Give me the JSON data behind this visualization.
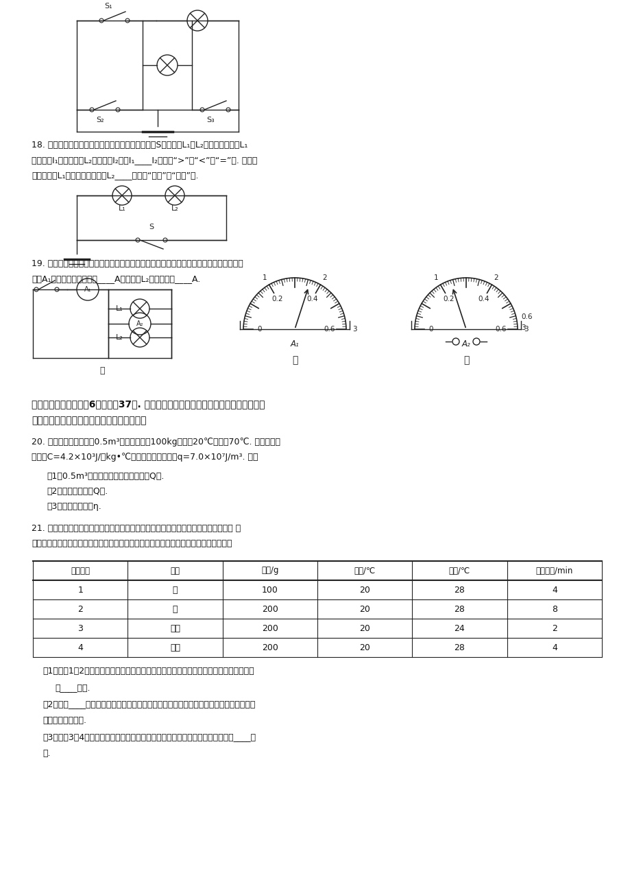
{
  "bg_color": "#ffffff",
  "text_color": "#111111",
  "page_width": 9.2,
  "page_height": 13.02,
  "q18_lines": [
    "18. 如图，把两个灯泡串联后接到电源上，合上开关S后，发现L₁比L₂亮，设通过灯泡L₁",
    "的电流为I₁，通过灯泡L₂的电流为I₂，则I₁____I₂（选填“>”、“<”或“=”）. 若工作",
    "过程中灯泡L₁突然烧坏，则灯泡L₂____（选填“仍亮”或“不亮”）."
  ],
  "q19_lines": [
    "19. 如图甲所示的电路图，开关闭合时，两灯都亮，两个电流表的示数分别如图乙和图丙，",
    "判断A₁表（图乙）的读数是____A；通过灯L₂的电流大是____A."
  ],
  "s4_lines": [
    "四、综合题（本大题八6小题，八37分. 解题中要求有必要的分析和说明，计算题还要有",
    "公式及数据代入过程，结果要有数值和单位）"
  ],
  "q20_lines": [
    "20. 天然气灶烧水，燃烧0.5m³的天然气，使100kg的水从20℃升高到70℃. 已知水的比",
    "热容为C=4.2×10³J/（kg•℃），天然气的热値为q=7.0×10⁷J/m³. 求："
  ],
  "q20_subs": [
    "（1）0.5m³天然气完全燃烧放出的热量Q放.",
    "（2）水吸收的热量Q吸.",
    "（3）燃气灶的效率η."
  ],
  "q21_lines": [
    "21. 几位同学为了研究物质温度升高时吸收热量的多少与哪些因素有关，做了如下实验 在",
    "四个相同的烧杯里分别盛入水和煎油，用同样的电热器给它们加热，得到如下实验数据："
  ],
  "table_headers": [
    "实验次数",
    "液体",
    "质量/g",
    "初温/℃",
    "末温/℃",
    "加热时间/min"
  ],
  "table_data": [
    [
      "1",
      "水",
      "100",
      "20",
      "28",
      "4"
    ],
    [
      "2",
      "水",
      "200",
      "20",
      "28",
      "8"
    ],
    [
      "3",
      "煎油",
      "200",
      "20",
      "24",
      "2"
    ],
    [
      "4",
      "煎油",
      "200",
      "20",
      "28",
      "4"
    ]
  ],
  "q21_subs": [
    "（1）比较1、2两次实验数据可以得出：同种物质升高相同的温度，吸收热量的多少与物质",
    "的____有关.",
    "（2）比较____两次实验数据可以得出：质量相同的物质升高相同的温度，吸收热量的多少",
    "与物质的种类有关.",
    "（3）比较3、4两次实验数据可以得出：质量相同的同种物质，吸收热量的多少与____有",
    "关."
  ]
}
